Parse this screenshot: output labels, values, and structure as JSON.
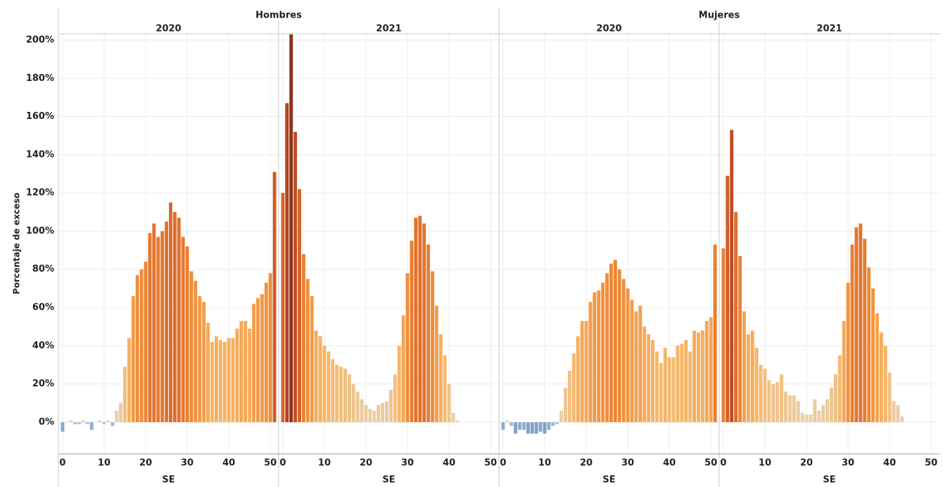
{
  "chart_data": {
    "type": "bar",
    "y_label": "Porcentaje de exceso",
    "x_label": "SE",
    "ylim": [
      -16.6,
      203.3
    ],
    "yticks": [
      {
        "value": 0,
        "label": "0%"
      },
      {
        "value": 20,
        "label": "20%"
      },
      {
        "value": 40,
        "label": "40%"
      },
      {
        "value": 60,
        "label": "60%"
      },
      {
        "value": 80,
        "label": "80%"
      },
      {
        "value": 100,
        "label": "100%"
      },
      {
        "value": 120,
        "label": "120%"
      },
      {
        "value": 140,
        "label": "140%"
      },
      {
        "value": 160,
        "label": "160%"
      },
      {
        "value": 180,
        "label": "180%"
      },
      {
        "value": 200,
        "label": "200%"
      }
    ],
    "xlim": [
      -1,
      52
    ],
    "xticks": [
      0,
      10,
      20,
      30,
      40,
      50
    ],
    "grid": true,
    "negative_colors": [
      "#a9c4dd",
      "#3a6a9c"
    ],
    "positive_colors": [
      "#e6d3b3",
      "#f7b565",
      "#ee8a35",
      "#d8622a",
      "#b64621",
      "#8c331a"
    ],
    "groups": [
      {
        "name": "Hombres",
        "panels": [
          {
            "year": "2020",
            "x": [
              0,
              1,
              2,
              3,
              4,
              5,
              6,
              7,
              8,
              9,
              10,
              11,
              12,
              13,
              14,
              15,
              16,
              17,
              18,
              19,
              20,
              21,
              22,
              23,
              24,
              25,
              26,
              27,
              28,
              29,
              30,
              31,
              32,
              33,
              34,
              35,
              36,
              37,
              38,
              39,
              40,
              41,
              42,
              43,
              44,
              45,
              46,
              47,
              48,
              49,
              50,
              51
            ],
            "values": [
              -5,
              0,
              1,
              -1,
              -1,
              1,
              -1,
              -4,
              0,
              1,
              -1,
              1,
              -2,
              6,
              10,
              29,
              44,
              66,
              77,
              80,
              84,
              99,
              104,
              97,
              100,
              105,
              115,
              110,
              107,
              97,
              92,
              79,
              74,
              66,
              63,
              52,
              42,
              45,
              43,
              42,
              44,
              44,
              49,
              53,
              53,
              49,
              62,
              65,
              67,
              73,
              78,
              131
            ]
          },
          {
            "year": "2021",
            "x": [
              0,
              1,
              2,
              3,
              4,
              5,
              6,
              7,
              8,
              9,
              10,
              11,
              12,
              13,
              14,
              15,
              16,
              17,
              18,
              19,
              20,
              21,
              22,
              23,
              24,
              25,
              26,
              27,
              28,
              29,
              30,
              31,
              32,
              33,
              34,
              35,
              36,
              37,
              38,
              39,
              40,
              41,
              42
            ],
            "values": [
              120,
              167,
              203,
              152,
              122,
              88,
              75,
              66,
              48,
              45,
              40,
              37,
              33,
              30,
              29,
              28,
              25,
              20,
              16,
              12,
              9,
              7,
              6,
              9,
              10,
              11,
              17,
              25,
              40,
              56,
              78,
              95,
              107,
              108,
              104,
              93,
              79,
              61,
              46,
              35,
              20,
              5,
              1
            ]
          }
        ]
      },
      {
        "name": "Mujeres",
        "panels": [
          {
            "year": "2020",
            "x": [
              0,
              1,
              2,
              3,
              4,
              5,
              6,
              7,
              8,
              9,
              10,
              11,
              12,
              13,
              14,
              15,
              16,
              17,
              18,
              19,
              20,
              21,
              22,
              23,
              24,
              25,
              26,
              27,
              28,
              29,
              30,
              31,
              32,
              33,
              34,
              35,
              36,
              37,
              38,
              39,
              40,
              41,
              42,
              43,
              44,
              45,
              46,
              47,
              48,
              49,
              50,
              51
            ],
            "values": [
              -4,
              1,
              -2,
              -6,
              -4,
              -4,
              -6,
              -6,
              -6,
              -5,
              -6,
              -4,
              -2,
              -1,
              6,
              18,
              27,
              36,
              45,
              53,
              53,
              63,
              68,
              69,
              73,
              78,
              83,
              85,
              80,
              75,
              70,
              64,
              58,
              61,
              50,
              46,
              43,
              37,
              31,
              39,
              34,
              34,
              40,
              41,
              43,
              37,
              48,
              47,
              48,
              53,
              55,
              93
            ]
          },
          {
            "year": "2021",
            "x": [
              0,
              1,
              2,
              3,
              4,
              5,
              6,
              7,
              8,
              9,
              10,
              11,
              12,
              13,
              14,
              15,
              16,
              17,
              18,
              19,
              20,
              21,
              22,
              23,
              24,
              25,
              26,
              27,
              28,
              29,
              30,
              31,
              32,
              33,
              34,
              35,
              36,
              37,
              38,
              39,
              40,
              41,
              42,
              43
            ],
            "values": [
              91,
              129,
              153,
              110,
              87,
              58,
              46,
              48,
              39,
              30,
              28,
              22,
              20,
              21,
              25,
              16,
              14,
              14,
              11,
              5,
              4,
              4,
              12,
              6,
              9,
              12,
              18,
              25,
              35,
              53,
              73,
              93,
              102,
              104,
              96,
              81,
              70,
              57,
              47,
              40,
              26,
              11,
              9,
              3
            ]
          }
        ]
      }
    ]
  }
}
